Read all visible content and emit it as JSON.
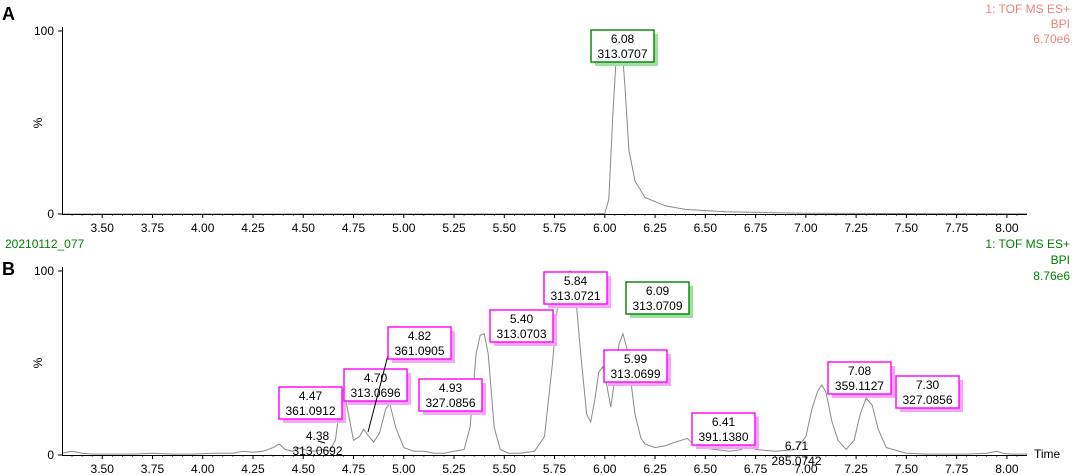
{
  "chart_data": [
    {
      "type": "line",
      "panel_label": "A",
      "instrument": "1: TOF MS ES+",
      "trace": "BPI",
      "intensity": "6.70e6",
      "meta_color": "#f08080",
      "ylabel": "%",
      "xlim": [
        3.3,
        8.1
      ],
      "ylim": [
        0,
        100
      ],
      "x_ticks": [
        "3.50",
        "3.75",
        "4.00",
        "4.25",
        "4.50",
        "4.75",
        "5.00",
        "5.25",
        "5.50",
        "5.75",
        "6.00",
        "6.25",
        "6.50",
        "6.75",
        "7.00",
        "7.25",
        "7.50",
        "7.75",
        "8.00"
      ],
      "y_ticks": [
        "0",
        "100"
      ],
      "series": [
        {
          "x": [
            3.3,
            5.9,
            6.0,
            6.02,
            6.04,
            6.06,
            6.08,
            6.1,
            6.12,
            6.15,
            6.2,
            6.3,
            6.4,
            6.6,
            7.0,
            8.1
          ],
          "y": [
            0,
            0,
            0.3,
            8,
            55,
            92,
            100,
            70,
            35,
            18,
            9,
            4.5,
            2.5,
            1.2,
            0.4,
            0.1
          ]
        }
      ],
      "annotations": [
        {
          "rt": "6.08",
          "mz": "313.0707",
          "x": 6.08,
          "style": "green"
        }
      ]
    },
    {
      "type": "line",
      "panel_label": "B",
      "sample_id": "20210112_077",
      "instrument": "1: TOF MS ES+",
      "trace": "BPI",
      "intensity": "8.76e6",
      "meta_color": "#008000",
      "ylabel": "%",
      "xlabel": "Time",
      "xlim": [
        3.3,
        8.1
      ],
      "ylim": [
        0,
        100
      ],
      "x_ticks": [
        "3.50",
        "3.75",
        "4.00",
        "4.25",
        "4.50",
        "4.75",
        "5.00",
        "5.25",
        "5.50",
        "5.75",
        "6.00",
        "6.25",
        "6.50",
        "6.75",
        "7.00",
        "7.25",
        "7.50",
        "7.75",
        "8.00"
      ],
      "y_ticks": [
        "0",
        "100"
      ],
      "series": [
        {
          "x": [
            3.3,
            3.35,
            3.4,
            3.45,
            3.55,
            3.65,
            3.75,
            3.85,
            3.95,
            4.05,
            4.15,
            4.2,
            4.25,
            4.3,
            4.35,
            4.38,
            4.41,
            4.45,
            4.47,
            4.5,
            4.55,
            4.6,
            4.63,
            4.66,
            4.68,
            4.7,
            4.72,
            4.75,
            4.78,
            4.8,
            4.82,
            4.85,
            4.88,
            4.91,
            4.93,
            4.96,
            5.0,
            5.05,
            5.1,
            5.15,
            5.2,
            5.25,
            5.3,
            5.33,
            5.36,
            5.38,
            5.4,
            5.42,
            5.45,
            5.48,
            5.52,
            5.58,
            5.65,
            5.7,
            5.74,
            5.77,
            5.8,
            5.83,
            5.84,
            5.86,
            5.88,
            5.91,
            5.93,
            5.95,
            5.97,
            5.99,
            6.01,
            6.03,
            6.05,
            6.07,
            6.09,
            6.11,
            6.13,
            6.15,
            6.18,
            6.2,
            6.25,
            6.3,
            6.35,
            6.38,
            6.41,
            6.44,
            6.48,
            6.55,
            6.62,
            6.68,
            6.71,
            6.75,
            6.85,
            6.95,
            7.0,
            7.03,
            7.06,
            7.08,
            7.1,
            7.13,
            7.16,
            7.2,
            7.24,
            7.27,
            7.3,
            7.33,
            7.36,
            7.4,
            7.5,
            7.6,
            7.7,
            7.8,
            7.9,
            7.95,
            7.98,
            8.02,
            8.1
          ],
          "y": [
            1,
            2,
            1,
            0.5,
            0.5,
            0.5,
            1,
            0.5,
            0.5,
            1,
            1,
            2,
            1.5,
            2,
            4,
            6,
            3,
            2,
            4,
            3,
            2,
            3,
            2,
            8,
            25,
            36,
            25,
            8,
            10,
            14,
            11,
            7,
            12,
            25,
            28,
            15,
            4,
            2,
            2,
            1,
            1,
            2,
            3,
            15,
            55,
            65,
            66,
            55,
            15,
            3,
            1,
            1,
            2,
            10,
            50,
            88,
            98,
            100,
            96,
            80,
            55,
            22,
            18,
            30,
            45,
            48,
            38,
            26,
            42,
            60,
            66,
            58,
            40,
            22,
            9,
            6,
            4,
            5,
            7,
            8,
            9,
            6,
            4,
            3,
            2,
            3,
            5,
            3,
            2,
            3,
            10,
            25,
            35,
            38,
            34,
            18,
            8,
            3,
            8,
            22,
            31,
            27,
            14,
            4,
            1,
            0.5,
            0.5,
            0.5,
            1,
            2,
            1,
            0.5,
            0.5
          ]
        }
      ],
      "annotations": [
        {
          "rt": "4.38",
          "mz": "313.0692",
          "x": 4.38,
          "style": "plain"
        },
        {
          "rt": "4.47",
          "mz": "361.0912",
          "x": 4.47,
          "style": "magenta"
        },
        {
          "rt": "4.70",
          "mz": "313.0696",
          "x": 4.7,
          "style": "magenta"
        },
        {
          "rt": "4.82",
          "mz": "361.0905",
          "x": 4.82,
          "style": "magenta"
        },
        {
          "rt": "4.93",
          "mz": "327.0856",
          "x": 4.93,
          "style": "magenta"
        },
        {
          "rt": "5.40",
          "mz": "313.0703",
          "x": 5.4,
          "style": "magenta"
        },
        {
          "rt": "5.84",
          "mz": "313.0721",
          "x": 5.84,
          "style": "magenta"
        },
        {
          "rt": "5.99",
          "mz": "313.0699",
          "x": 5.99,
          "style": "magenta"
        },
        {
          "rt": "6.09",
          "mz": "313.0709",
          "x": 6.09,
          "style": "green"
        },
        {
          "rt": "6.41",
          "mz": "391.1380",
          "x": 6.41,
          "style": "magenta"
        },
        {
          "rt": "6.71",
          "mz": "285.0742",
          "x": 6.71,
          "style": "plain"
        },
        {
          "rt": "7.08",
          "mz": "359.1127",
          "x": 7.08,
          "style": "magenta"
        },
        {
          "rt": "7.30",
          "mz": "327.0856",
          "x": 7.3,
          "style": "magenta"
        }
      ]
    }
  ]
}
